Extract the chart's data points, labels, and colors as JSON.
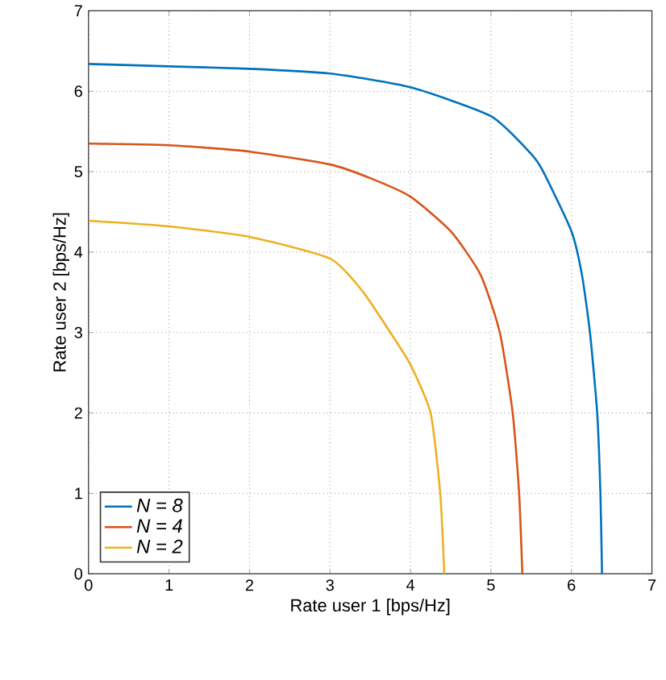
{
  "chart_data": {
    "type": "line",
    "xlabel": "Rate user 1 [bps/Hz]",
    "ylabel": "Rate user 2 [bps/Hz]",
    "xlim": [
      0,
      7
    ],
    "ylim": [
      0,
      7
    ],
    "xticks": [
      0,
      1,
      2,
      3,
      4,
      5,
      6,
      7
    ],
    "yticks": [
      0,
      1,
      2,
      3,
      4,
      5,
      6,
      7
    ],
    "grid": true,
    "legend": "bottom left",
    "series": [
      {
        "name": "N = 8",
        "color": "#0072bd",
        "x": [
          0,
          1,
          2,
          3,
          4,
          5,
          5.5,
          5.65,
          6,
          6.13,
          6.23,
          6.32,
          6.36,
          6.38
        ],
        "values": [
          6.34,
          6.31,
          6.28,
          6.22,
          6.05,
          5.69,
          5.22,
          5.0,
          4.26,
          3.72,
          3.0,
          2.0,
          1.0,
          0
        ]
      },
      {
        "name": "N = 4",
        "color": "#d95319",
        "x": [
          0,
          1,
          2,
          3,
          3.5,
          4,
          4.5,
          4.87,
          5.11,
          5.27,
          5.35,
          5.39
        ],
        "values": [
          5.35,
          5.33,
          5.25,
          5.09,
          4.92,
          4.69,
          4.26,
          3.72,
          3.0,
          2.0,
          1.0,
          0
        ]
      },
      {
        "name": "N = 2",
        "color": "#edb120",
        "x": [
          0,
          1,
          2,
          3,
          3.4,
          3.75,
          4.0,
          4.25,
          4.37,
          4.42
        ],
        "values": [
          4.39,
          4.32,
          4.19,
          3.92,
          3.52,
          3.0,
          2.6,
          2.0,
          1.0,
          0
        ]
      }
    ]
  }
}
